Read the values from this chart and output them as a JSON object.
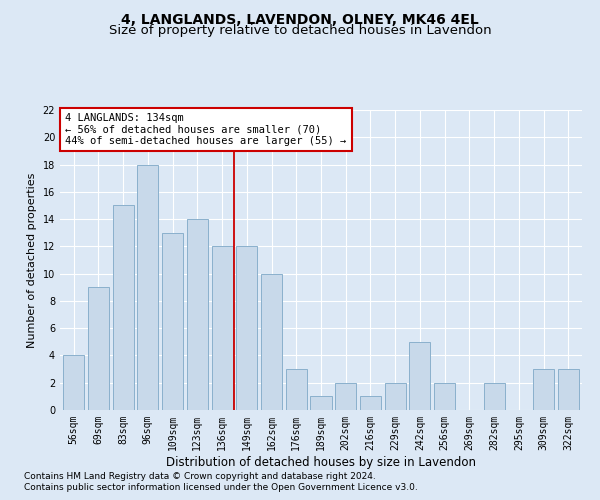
{
  "title1": "4, LANGLANDS, LAVENDON, OLNEY, MK46 4EL",
  "title2": "Size of property relative to detached houses in Lavendon",
  "xlabel": "Distribution of detached houses by size in Lavendon",
  "ylabel": "Number of detached properties",
  "categories": [
    "56sqm",
    "69sqm",
    "83sqm",
    "96sqm",
    "109sqm",
    "123sqm",
    "136sqm",
    "149sqm",
    "162sqm",
    "176sqm",
    "189sqm",
    "202sqm",
    "216sqm",
    "229sqm",
    "242sqm",
    "256sqm",
    "269sqm",
    "282sqm",
    "295sqm",
    "309sqm",
    "322sqm"
  ],
  "values": [
    4,
    9,
    15,
    18,
    13,
    14,
    12,
    12,
    10,
    3,
    1,
    2,
    1,
    2,
    5,
    2,
    0,
    2,
    0,
    3,
    3
  ],
  "bar_color": "#c8d9ea",
  "bar_edge_color": "#8ab0cc",
  "vline_x_index": 6.5,
  "vline_color": "#cc0000",
  "annotation_text": "4 LANGLANDS: 134sqm\n← 56% of detached houses are smaller (70)\n44% of semi-detached houses are larger (55) →",
  "annotation_box_color": "#ffffff",
  "annotation_box_edge": "#cc0000",
  "ylim": [
    0,
    22
  ],
  "yticks": [
    0,
    2,
    4,
    6,
    8,
    10,
    12,
    14,
    16,
    18,
    20,
    22
  ],
  "bg_color": "#dce8f5",
  "plot_bg_color": "#dce8f5",
  "footer1": "Contains HM Land Registry data © Crown copyright and database right 2024.",
  "footer2": "Contains public sector information licensed under the Open Government Licence v3.0.",
  "title1_fontsize": 10,
  "title2_fontsize": 9.5,
  "xlabel_fontsize": 8.5,
  "ylabel_fontsize": 8,
  "tick_fontsize": 7,
  "annotation_fontsize": 7.5,
  "footer_fontsize": 6.5
}
